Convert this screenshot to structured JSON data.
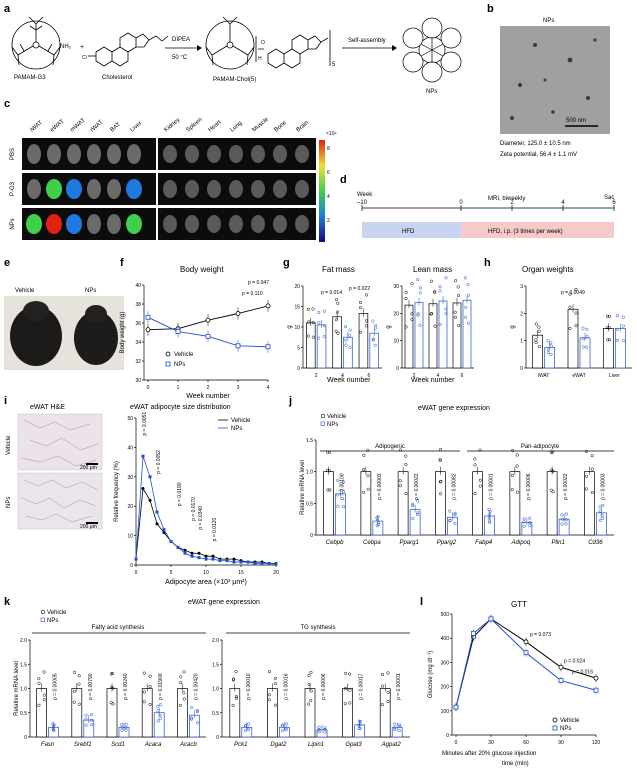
{
  "colors": {
    "vehicle": "#000000",
    "nps": "#1f4fd1",
    "hfd": "#c9d4f2",
    "hfd_ip": "#f7c9c9"
  },
  "panel_a": {
    "label": "a",
    "pamam_g3": "PAMAM-G3",
    "nh2": "NH₂",
    "cholesterol": "Cholesterol",
    "dipea": "DIPEA",
    "temp": "50 °C",
    "product": "PAMAM-Chol(5)",
    "subscript": "5",
    "self_assembly": "Self-assembly",
    "nps": "NPs"
  },
  "panel_b": {
    "label": "b",
    "title": "NPs",
    "scale": "500 nm",
    "diameter": "Diameter, 125.0 ± 10.5 nm",
    "zeta": "Zeta potential, 56.4 ± 1.1 mV"
  },
  "panel_c": {
    "label": "c",
    "tissues_left": [
      "iWAT",
      "eWAT",
      "mWAT",
      "rWAT",
      "BAT",
      "Liver"
    ],
    "tissues_right": [
      "Kidney",
      "Spleen",
      "Heart",
      "Lung",
      "Muscle",
      "Bone",
      "Brain"
    ],
    "rows": [
      "PBS",
      "P-G3",
      "NPs"
    ],
    "scale_exp": "×10⁹",
    "scale_ticks": [
      "8",
      "6",
      "4",
      "2"
    ]
  },
  "panel_d": {
    "label": "d",
    "week_label": "Week",
    "weeks": [
      "–10",
      "0",
      "2",
      "4",
      "6"
    ],
    "mri": "MRI, biweekly",
    "sac": "Sac",
    "hfd": "HFD",
    "hfd_ip": "HFD, i.p. (3 times per week)"
  },
  "panel_e": {
    "label": "e",
    "vehicle": "Vehicle",
    "nps": "NPs"
  },
  "panel_f": {
    "label": "f",
    "title": "Body weight",
    "ylabel": "Body weight (g)",
    "xlabel": "Week number",
    "p1": "p = 0.110",
    "p2": "p = 0.047",
    "legend_vehicle": "Vehicle",
    "legend_nps": "NPs"
  },
  "panel_g": {
    "label": "g",
    "title_fat": "Fat mass",
    "title_lean": "Lean mass",
    "ylabel": "g",
    "xlabel": "Week number",
    "p1": "p = 0.014",
    "p2": "p = 0.022"
  },
  "panel_h": {
    "label": "h",
    "title": "Organ weights",
    "ylabel": "g",
    "p1": "p = 0.0049"
  },
  "panel_i": {
    "label": "i",
    "title_he": "eWAT H&E",
    "row_vehicle": "Vehicle",
    "row_nps": "NPs",
    "title": "eWAT adipocyte size distribution",
    "ylabel": "Relative frequency (%)",
    "xlabel": "Adipocyte area (×10³ μm²)",
    "legend_vehicle": "Vehicle",
    "legend_nps": "NPs",
    "scale": "200 μm",
    "pvals": [
      "p = 0.0051",
      "p = 0.0052",
      "p = 0.0190",
      "p = 0.0170",
      "p = 0.0340",
      "p = 0.0120"
    ]
  },
  "panel_j": {
    "label": "j",
    "title": "eWAT gene expression",
    "legend_vehicle": "Vehicle",
    "legend_nps": "NPs",
    "ylabel": "Relative mRNA level",
    "group1": "Adipogenic",
    "group2": "Pan-adipocyte",
    "pvals": [
      "p = 0.00100",
      "p = 0.00003",
      "p = 0.00022",
      "p = 0.00082",
      "p = 0.00001",
      "p = 0.00006",
      "p = 0.00022",
      "p = 0.00003"
    ]
  },
  "panel_k": {
    "label": "k",
    "title": "eWAT gene expression",
    "legend_vehicle": "Vehicle",
    "legend_nps": "NPs",
    "ylabel": "Relative mRNA level",
    "group1": "Fatty acid synthesis",
    "group2": "TG synthesis",
    "pvals": [
      "p = 0.00005",
      "p = 0.00790",
      "p = 0.00240",
      "p = 0.01900",
      "p = 0.00420",
      "p = 0.00010",
      "p = 0.00016",
      "p = 0.00006",
      "p = 0.00017",
      "p = 0.00001"
    ]
  },
  "panel_l": {
    "label": "l",
    "title": "GTT",
    "ylabel": "Glucose (mg dl⁻¹)",
    "xlabel1": "Minutes after 20% glucose injection",
    "xlabel2": "time (min)",
    "p1": "p = 0.073",
    "p2": "p = 0.024",
    "p3": "p = 0.016",
    "legend_vehicle": "Vehicle",
    "legend_nps": "NPs"
  },
  "chart_data": [
    {
      "type": "line",
      "panel": "f",
      "x": [
        0,
        1,
        2,
        3,
        4
      ],
      "xlabel": "Week number",
      "ylabel": "Body weight (g)",
      "ylim": [
        30,
        40
      ],
      "y_ticks": [
        "30",
        "32",
        "34",
        "36",
        "38",
        "40"
      ],
      "series": [
        {
          "name": "Vehicle",
          "values": [
            35.3,
            35.4,
            36.3,
            37.0,
            37.8
          ]
        },
        {
          "name": "NPs",
          "values": [
            36.6,
            35.1,
            34.6,
            33.6,
            33.5
          ]
        }
      ]
    },
    {
      "type": "bar",
      "panel": "g-fat",
      "categories": [
        "2",
        "4",
        "6"
      ],
      "ylim": [
        0,
        20
      ],
      "y_ticks": [
        "0",
        "5",
        "10",
        "15",
        "20"
      ],
      "series": [
        {
          "name": "Vehicle",
          "values": [
            11.0,
            12.5,
            13.3
          ]
        },
        {
          "name": "NPs",
          "values": [
            10.5,
            7.5,
            8.5
          ]
        }
      ]
    },
    {
      "type": "bar",
      "panel": "g-lean",
      "categories": [
        "2",
        "4",
        "6"
      ],
      "ylim": [
        0,
        30
      ],
      "y_ticks": [
        "0",
        "10",
        "20",
        "30"
      ],
      "series": [
        {
          "name": "Vehicle",
          "values": [
            23.0,
            23.5,
            23.8
          ]
        },
        {
          "name": "NPs",
          "values": [
            24.0,
            24.5,
            24.8
          ]
        }
      ]
    },
    {
      "type": "bar",
      "panel": "h",
      "categories": [
        "iWAT",
        "eWAT",
        "Liver"
      ],
      "ylim": [
        0,
        3
      ],
      "y_ticks": [
        "0",
        "1",
        "2",
        "3"
      ],
      "series": [
        {
          "name": "Vehicle",
          "values": [
            1.2,
            2.15,
            1.45
          ]
        },
        {
          "name": "NPs",
          "values": [
            0.75,
            1.1,
            1.45
          ]
        }
      ]
    },
    {
      "type": "line",
      "panel": "i",
      "x": [
        0,
        1,
        2,
        3,
        4,
        5,
        6,
        7,
        8,
        9,
        10,
        11,
        12,
        13,
        14,
        15,
        16,
        17,
        18,
        19,
        20
      ],
      "xlabel": "Adipocyte area (×10³ μm²)",
      "ylabel": "Relative frequency (%)",
      "ylim": [
        0,
        50
      ],
      "x_ticks": [
        "0",
        "5",
        "10",
        "15",
        "20"
      ],
      "y_ticks": [
        "0",
        "10",
        "20",
        "30",
        "40",
        "50"
      ],
      "series": [
        {
          "name": "Vehicle",
          "values": [
            2,
            26,
            22,
            14,
            11,
            8,
            6,
            5,
            4,
            4,
            3,
            3,
            2,
            2,
            2,
            1.5,
            1,
            1,
            1,
            0.5,
            0.5
          ]
        },
        {
          "name": "NPs",
          "values": [
            2,
            37,
            30,
            18,
            12,
            8,
            6,
            4,
            3,
            2.5,
            2,
            2,
            1.5,
            1.5,
            1,
            1,
            1,
            0.5,
            0.5,
            0.5,
            0.3
          ]
        }
      ]
    },
    {
      "type": "bar",
      "panel": "j",
      "categories": [
        "Cebpb",
        "Cebpa",
        "Pparg1",
        "Pparg2",
        "Fabp4",
        "Adipoq",
        "Plin1",
        "Cd36"
      ],
      "ylim": [
        0,
        1.5
      ],
      "y_ticks": [
        "0",
        "0.5",
        "1.0",
        "1.5"
      ],
      "series": [
        {
          "name": "Vehicle",
          "values": [
            1.0,
            1.0,
            1.0,
            1.0,
            1.0,
            1.0,
            1.0,
            1.0
          ]
        },
        {
          "name": "NPs",
          "values": [
            0.65,
            0.22,
            0.4,
            0.28,
            0.3,
            0.2,
            0.25,
            0.35
          ]
        }
      ]
    },
    {
      "type": "bar",
      "panel": "k-fa",
      "categories": [
        "Fasn",
        "Srebf1",
        "Scd1",
        "Acaca",
        "Acacb"
      ],
      "ylim": [
        0,
        2.0
      ],
      "y_ticks": [
        "0",
        "0.5",
        "1.0",
        "1.5",
        "2.0"
      ],
      "series": [
        {
          "name": "Vehicle",
          "values": [
            1.0,
            1.0,
            1.0,
            1.0,
            1.0
          ]
        },
        {
          "name": "NPs",
          "values": [
            0.2,
            0.35,
            0.2,
            0.5,
            0.45
          ]
        }
      ]
    },
    {
      "type": "bar",
      "panel": "k-tg",
      "categories": [
        "Pck1",
        "Dgat2",
        "Lipin1",
        "Gpat3",
        "Agpat2"
      ],
      "ylim": [
        0,
        2.0
      ],
      "y_ticks": [
        "0",
        "0.5",
        "1.0",
        "1.5",
        "2.0"
      ],
      "series": [
        {
          "name": "Vehicle",
          "values": [
            1.0,
            1.0,
            1.0,
            1.0,
            1.0
          ]
        },
        {
          "name": "NPs",
          "values": [
            0.2,
            0.2,
            0.15,
            0.25,
            0.2
          ]
        }
      ]
    },
    {
      "type": "line",
      "panel": "l",
      "x": [
        0,
        15,
        30,
        60,
        90,
        120
      ],
      "xlabel": "Minutes after 20% glucose injection time (min)",
      "ylabel": "Glucose (mg dl⁻¹)",
      "ylim": [
        0,
        500
      ],
      "x_ticks": [
        "0",
        "30",
        "60",
        "90",
        "120"
      ],
      "y_ticks": [
        "0",
        "100",
        "200",
        "300",
        "400",
        "500"
      ],
      "series": [
        {
          "name": "Vehicle",
          "values": [
            115,
            405,
            480,
            385,
            280,
            235
          ]
        },
        {
          "name": "NPs",
          "values": [
            115,
            420,
            480,
            340,
            225,
            185
          ]
        }
      ]
    }
  ]
}
